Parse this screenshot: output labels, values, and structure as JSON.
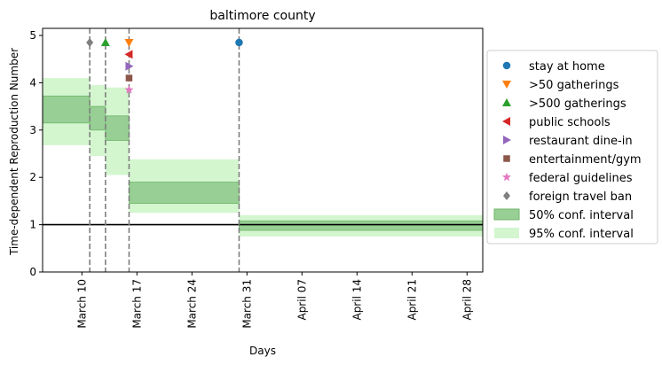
{
  "chart_data": {
    "type": "step-area",
    "title": "baltimore county",
    "xlabel": "Days",
    "ylabel": "Time-dependent Reproduction Number",
    "x_ticks": [
      "March 10",
      "March 17",
      "March 24",
      "March 31",
      "April 07",
      "April 14",
      "April 21",
      "April 28"
    ],
    "x_tick_days": [
      10,
      17,
      24,
      31,
      38,
      45,
      52,
      59
    ],
    "x_range_days": [
      5,
      61
    ],
    "ylim": [
      0,
      5.15
    ],
    "y_ticks": [
      0,
      1,
      2,
      3,
      4,
      5
    ],
    "reference_line_y": 1,
    "segments": [
      {
        "start_day": 5,
        "end_day": 11,
        "ci50": [
          3.15,
          3.72
        ],
        "ci95": [
          2.68,
          4.1
        ]
      },
      {
        "start_day": 11,
        "end_day": 13,
        "ci50": [
          3.0,
          3.5
        ],
        "ci95": [
          2.45,
          3.95
        ]
      },
      {
        "start_day": 13,
        "end_day": 16,
        "ci50": [
          2.78,
          3.3
        ],
        "ci95": [
          2.05,
          3.9
        ]
      },
      {
        "start_day": 16,
        "end_day": 30,
        "ci50": [
          1.45,
          1.9
        ],
        "ci95": [
          1.25,
          2.38
        ]
      },
      {
        "start_day": 30,
        "end_day": 61,
        "ci50": [
          0.88,
          1.08
        ],
        "ci95": [
          0.75,
          1.2
        ]
      }
    ],
    "interventions": [
      {
        "name": "stay at home",
        "day": 30,
        "y": 4.85,
        "marker": "circle",
        "color": "#1f77b4"
      },
      {
        "name": ">50 gatherings",
        "day": 16,
        "y": 4.85,
        "marker": "triangle-down",
        "color": "#ff7f0e"
      },
      {
        "name": ">500 gatherings",
        "day": 13,
        "y": 4.85,
        "marker": "triangle-up",
        "color": "#2ca02c"
      },
      {
        "name": "public schools",
        "day": 16,
        "y": 4.6,
        "marker": "triangle-left",
        "color": "#d62728"
      },
      {
        "name": "restaurant dine-in",
        "day": 16,
        "y": 4.35,
        "marker": "triangle-right",
        "color": "#9467bd"
      },
      {
        "name": "entertainment/gym",
        "day": 16,
        "y": 4.1,
        "marker": "square",
        "color": "#8c564b"
      },
      {
        "name": "federal guidelines",
        "day": 16,
        "y": 3.85,
        "marker": "star",
        "color": "#e377c2"
      },
      {
        "name": "foreign travel ban",
        "day": 11,
        "y": 4.85,
        "marker": "diamond",
        "color": "#7f7f7f"
      }
    ],
    "vertical_lines_days": [
      11,
      13,
      16,
      30
    ],
    "legend": {
      "placement": "right",
      "ci50_label": "50% conf. interval",
      "ci95_label": "95% conf. interval"
    },
    "colors": {
      "ci50_fill": "#98cf94",
      "ci50_edge": "#6fb56b",
      "ci95_fill": "#d3f6cf",
      "reference_line": "#000000",
      "vertical_line": "#7f7f7f"
    }
  }
}
